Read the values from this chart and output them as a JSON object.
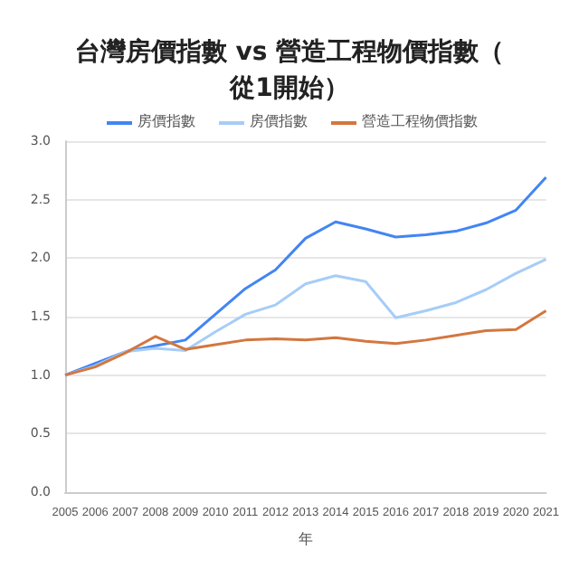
{
  "chart_data": {
    "type": "line",
    "title": "台灣房價指數 vs 營造工程物價指數（從1開始）",
    "xlabel": "年",
    "categories": [
      "2005",
      "2006",
      "2007",
      "2008",
      "2009",
      "2010",
      "2011",
      "2012",
      "2013",
      "2014",
      "2015",
      "2016",
      "2017",
      "2018",
      "2019",
      "2020",
      "2021"
    ],
    "series": [
      {
        "name": "房價指數",
        "color": "#4285f4",
        "values": [
          1.0,
          1.1,
          1.2,
          1.25,
          1.3,
          1.52,
          1.74,
          1.9,
          2.17,
          2.31,
          2.25,
          2.18,
          2.2,
          2.23,
          2.3,
          2.41,
          2.69
        ]
      },
      {
        "name": "房價指數",
        "color": "#a6cdf7",
        "values": [
          1.0,
          1.08,
          1.2,
          1.23,
          1.21,
          1.37,
          1.52,
          1.6,
          1.78,
          1.85,
          1.8,
          1.49,
          1.55,
          1.62,
          1.73,
          1.87,
          1.99
        ]
      },
      {
        "name": "營造工程物價指數",
        "color": "#d3773f",
        "values": [
          1.0,
          1.07,
          1.19,
          1.33,
          1.22,
          1.26,
          1.3,
          1.31,
          1.3,
          1.32,
          1.29,
          1.27,
          1.3,
          1.34,
          1.38,
          1.39,
          1.55
        ]
      }
    ],
    "ylim": [
      0,
      3
    ],
    "yticks": [
      {
        "value": 0,
        "label": "0.0"
      },
      0.5,
      {
        "value": 1,
        "label": "1.0"
      },
      1.5,
      {
        "value": 2,
        "label": "2.0"
      },
      2.5,
      {
        "value": 3,
        "label": "3.0"
      }
    ],
    "grid": "y",
    "legend": "top",
    "marker": "none",
    "line_style": "solid"
  }
}
